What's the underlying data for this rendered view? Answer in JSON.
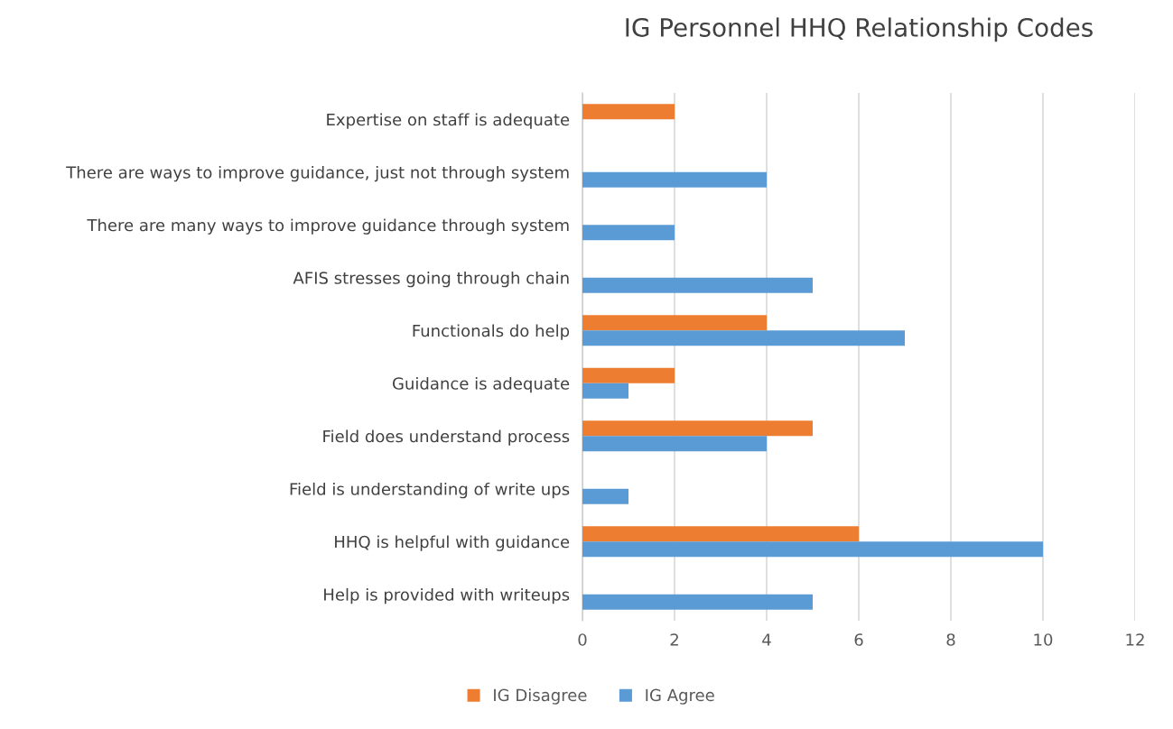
{
  "chart_data": {
    "type": "bar",
    "orientation": "horizontal",
    "title": "IG Personnel HHQ Relationship Codes",
    "categories": [
      "Expertise on staff is adequate",
      "There are ways to improve guidance, just not through system",
      "There are many ways to improve guidance through system",
      "AFIS stresses going through chain",
      "Functionals do help",
      "Guidance is adequate",
      "Field does understand process",
      "Field is understanding of write ups",
      "HHQ is helpful with guidance",
      "Help is provided with writeups"
    ],
    "series": [
      {
        "name": "IG Disagree",
        "color": "#ed7d31",
        "values": [
          2,
          null,
          null,
          null,
          4,
          2,
          5,
          null,
          6,
          null
        ]
      },
      {
        "name": "IG Agree",
        "color": "#5b9bd5",
        "values": [
          null,
          4,
          2,
          5,
          7,
          1,
          4,
          1,
          10,
          5
        ]
      }
    ],
    "xlim": [
      0,
      12
    ],
    "xticks": [
      0,
      2,
      4,
      6,
      8,
      10,
      12
    ],
    "grid": "x",
    "legend": "bottom"
  }
}
